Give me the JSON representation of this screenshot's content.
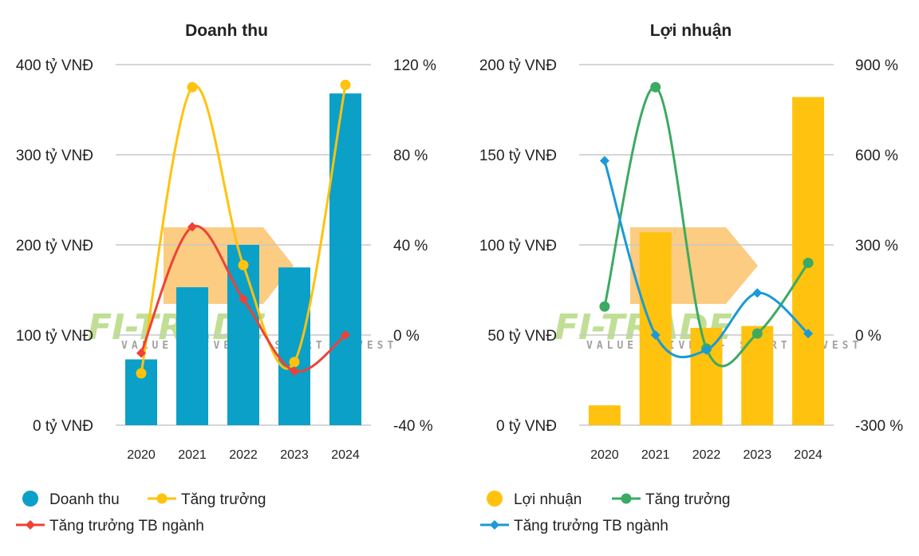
{
  "charts": [
    {
      "id": "revenue",
      "title": "Doanh thu",
      "left_axis": {
        "ticks": [
          "0 tỷ VNĐ",
          "100 tỷ VNĐ",
          "200 tỷ VNĐ",
          "300 tỷ VNĐ",
          "400 tỷ VNĐ"
        ]
      },
      "right_axis": {
        "ticks": [
          "-40 %",
          "0 %",
          "40 %",
          "80 %",
          "120 %"
        ]
      },
      "legend": [
        {
          "label": "Doanh thu",
          "kind": "circle",
          "color": "#0aa0c8"
        },
        {
          "label": "Tăng trưởng",
          "kind": "line-circle",
          "color": "#ffc20e"
        },
        {
          "label": "Tăng trưởng TB ngành",
          "kind": "line-diamond",
          "color": "#ef4136"
        }
      ]
    },
    {
      "id": "profit",
      "title": "Lợi nhuận",
      "left_axis": {
        "ticks": [
          "0 tỷ VNĐ",
          "50 tỷ VNĐ",
          "100 tỷ VNĐ",
          "150 tỷ VNĐ",
          "200 tỷ VNĐ"
        ]
      },
      "right_axis": {
        "ticks": [
          "-300 %",
          "0 %",
          "300 %",
          "600 %",
          "900 %"
        ]
      },
      "legend": [
        {
          "label": "Lợi nhuận",
          "kind": "circle",
          "color": "#ffc20e"
        },
        {
          "label": "Tăng trưởng",
          "kind": "line-circle",
          "color": "#3caa62"
        },
        {
          "label": "Tăng trưởng TB ngành",
          "kind": "line-diamond",
          "color": "#1a9ad6"
        }
      ]
    }
  ],
  "watermark": {
    "brand": "FI-TRADE",
    "tagline": "VALUE DRIVEN - SMART INVEST"
  },
  "chart_data": [
    {
      "type": "bar",
      "title": "Doanh thu",
      "categories": [
        "2020",
        "2021",
        "2022",
        "2023",
        "2024"
      ],
      "ylim": [
        0,
        400
      ],
      "y2lim": [
        -40,
        120
      ],
      "series": [
        {
          "name": "Doanh thu",
          "type": "bar",
          "axis": "left",
          "color": "#0aa0c8",
          "values": [
            73,
            153,
            200,
            175,
            368
          ]
        },
        {
          "name": "Tăng trưởng",
          "type": "line",
          "marker": "circle",
          "axis": "right",
          "color": "#ffc20e",
          "values": [
            -17,
            110,
            31,
            -12,
            111
          ]
        },
        {
          "name": "Tăng trưởng TB ngành",
          "type": "line",
          "marker": "diamond",
          "axis": "right",
          "color": "#ef4136",
          "values": [
            -8,
            48,
            16,
            -16,
            0
          ]
        }
      ]
    },
    {
      "type": "bar",
      "title": "Lợi nhuận",
      "categories": [
        "2020",
        "2021",
        "2022",
        "2023",
        "2024"
      ],
      "ylim": [
        0,
        200
      ],
      "y2lim": [
        -300,
        900
      ],
      "series": [
        {
          "name": "Lợi nhuận",
          "type": "bar",
          "axis": "left",
          "color": "#ffc20e",
          "values": [
            11,
            107,
            54,
            55,
            182
          ]
        },
        {
          "name": "Tăng trưởng",
          "type": "line",
          "marker": "circle",
          "axis": "right",
          "color": "#3caa62",
          "values": [
            95,
            825,
            -45,
            5,
            240
          ]
        },
        {
          "name": "Tăng trưởng TB ngành",
          "type": "line",
          "marker": "diamond",
          "axis": "right",
          "color": "#1a9ad6",
          "values": [
            580,
            0,
            -50,
            140,
            5
          ]
        }
      ]
    }
  ]
}
